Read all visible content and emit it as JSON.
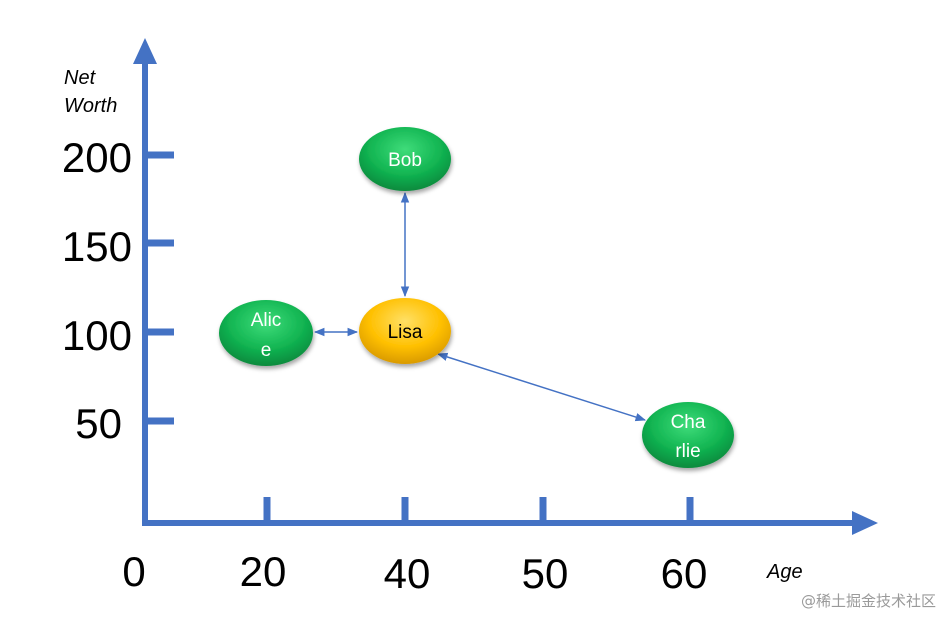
{
  "diagram": {
    "x_axis": {
      "title": "Age",
      "origin_label": "0",
      "ticks": [
        {
          "label": "20"
        },
        {
          "label": "40"
        },
        {
          "label": "50"
        },
        {
          "label": "60"
        }
      ]
    },
    "y_axis": {
      "title_line1": "Net",
      "title_line2": "Worth",
      "ticks": [
        {
          "label": "200"
        },
        {
          "label": "150"
        },
        {
          "label": "100"
        },
        {
          "label": "50"
        }
      ]
    },
    "nodes": {
      "bob": {
        "line1": "Bob",
        "line2": "",
        "color": "#11b552",
        "text_color": "#ffffff"
      },
      "alice": {
        "line1": "Alic",
        "line2": "e",
        "color": "#11b552",
        "text_color": "#ffffff"
      },
      "lisa": {
        "line1": "Lisa",
        "line2": "",
        "color": "#ffc000",
        "text_color": "#000000"
      },
      "charlie": {
        "line1": "Cha",
        "line2": "rlie",
        "color": "#11b552",
        "text_color": "#ffffff"
      }
    },
    "edges": [
      {
        "from": "Lisa",
        "to": "Bob"
      },
      {
        "from": "Lisa",
        "to": "Alice"
      },
      {
        "from": "Lisa",
        "to": "Charlie"
      }
    ],
    "colors": {
      "axis": "#4472c4",
      "green_node": "#11b552",
      "gold_node": "#ffc000"
    }
  },
  "watermark": "@稀土掘金技术社区"
}
